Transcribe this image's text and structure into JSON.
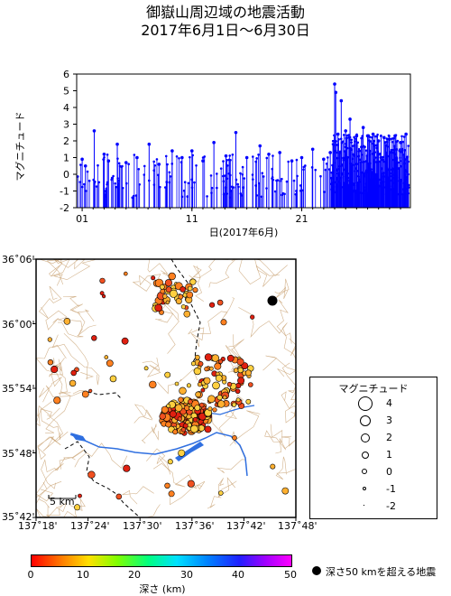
{
  "title_line1": "御嶽山周辺域の地震活動",
  "title_line2": "2017年6月1日〜6月30日",
  "colors": {
    "quake_series": "#0000ff",
    "river": "#2f6fe0",
    "contour": "#c8a070",
    "depth_shallow": "#e03010"
  },
  "chart_data": {
    "type": "scatter",
    "title": "",
    "xlabel": "日(2017年6月)",
    "ylabel": "マグニチュード",
    "ylim": [
      -2,
      6
    ],
    "xlim": [
      0.5,
      30.9
    ],
    "x_tick_labels": [
      "01",
      "11",
      "21"
    ],
    "y_tick_labels": [
      "-2",
      "-1",
      "0",
      "1",
      "2",
      "3",
      "4",
      "5",
      "6"
    ],
    "series": [
      {
        "x": [
          1.0,
          1.3,
          2.1,
          3.0,
          3.4,
          4.2,
          5.0,
          6.0,
          7.1,
          8.0,
          9.2,
          10.1,
          11.0,
          12.0,
          13.0,
          14.1,
          15.0,
          16.0,
          17.2,
          18.0,
          19.0,
          20.1,
          21.0,
          22.0,
          23.0,
          23.6,
          24.0,
          24.1,
          24.3,
          24.6,
          25.0,
          25.4,
          26.0,
          26.6,
          27.0,
          27.5,
          28.0,
          28.5,
          29.0,
          29.5,
          30.0,
          30.5
        ],
        "y": [
          0.9,
          0.5,
          2.6,
          1.2,
          0.8,
          1.8,
          0.7,
          1.0,
          1.8,
          0.6,
          1.4,
          1.0,
          1.4,
          0.8,
          1.9,
          1.1,
          2.5,
          1.0,
          1.7,
          1.2,
          1.3,
          0.8,
          1.0,
          1.5,
          0.9,
          1.3,
          5.4,
          4.9,
          2.4,
          4.4,
          2.6,
          3.3,
          2.3,
          2.8,
          2.3,
          2.4,
          2.0,
          2.2,
          2.1,
          2.3,
          1.9,
          2.4
        ]
      }
    ]
  },
  "map": {
    "lat_labels": [
      "36˚06'",
      "36˚00'",
      "35˚54'",
      "35˚48'",
      "35˚42'"
    ],
    "lon_labels": [
      "137˚18'",
      "137˚24'",
      "137˚30'",
      "137˚36'",
      "137˚42'",
      "137˚48'"
    ],
    "scale_label": "5 km"
  },
  "legend": {
    "title": "マグニチュード",
    "rows": [
      "4",
      "3",
      "2",
      "1",
      "0",
      "-1",
      "-2"
    ]
  },
  "colorbar": {
    "ticks": [
      "0",
      "10",
      "20",
      "30",
      "40",
      "50"
    ],
    "label": "深さ (km)",
    "deep_note": "深さ50 kmを超える地震"
  }
}
